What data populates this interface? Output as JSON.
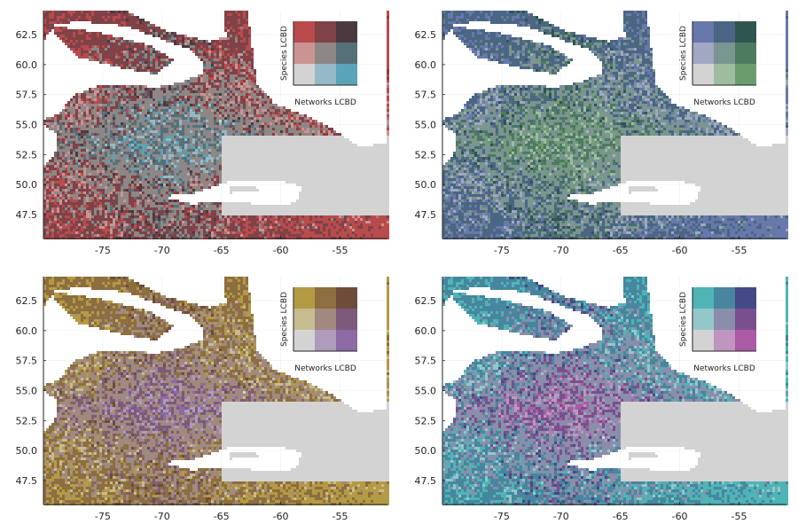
{
  "x_ticks": [
    "-75",
    "-70",
    "-65",
    "-60",
    "-55"
  ],
  "y_ticks": [
    "62.5",
    "60.0",
    "57.5",
    "55.0",
    "52.5",
    "50.0",
    "47.5"
  ],
  "legend": {
    "x_label": "Networks LCBD",
    "y_label": "Species LCBD"
  },
  "palettes": [
    {
      "name": "red-blue",
      "grid": [
        [
          "#d3d3d3",
          "#95bac6",
          "#5aa4b8"
        ],
        [
          "#c99593",
          "#8e8785",
          "#56707a"
        ],
        [
          "#b94b4d",
          "#7e4247",
          "#4a3a40"
        ]
      ],
      "nodata": "#ffffff"
    },
    {
      "name": "blue-green",
      "grid": [
        [
          "#d3d3d3",
          "#9ebd9e",
          "#6b9c6e"
        ],
        [
          "#a0a8c3",
          "#7b9590",
          "#4d7b5f"
        ],
        [
          "#6878aa",
          "#4a6682",
          "#2f5550"
        ]
      ],
      "nodata": "#ffffff"
    },
    {
      "name": "gold-purple",
      "grid": [
        [
          "#d3d3d3",
          "#b09bbb",
          "#8b6aa5"
        ],
        [
          "#c7bc90",
          "#a08a80",
          "#7c5a7a"
        ],
        [
          "#b59a45",
          "#8c6e40",
          "#6e4c3c"
        ]
      ],
      "nodata": "#ffffff"
    },
    {
      "name": "teal-magenta",
      "grid": [
        [
          "#d3d3d3",
          "#c195c1",
          "#ac5aa5"
        ],
        [
          "#94c7c9",
          "#8a8eaa",
          "#7a4f8e"
        ],
        [
          "#4fb4b6",
          "#47869e",
          "#434a85"
        ]
      ],
      "nodata": "#ffffff"
    }
  ],
  "chart_data": {
    "type": "heatmap",
    "description_kind": "bivariate choropleth map (Species LCBD × Networks LCBD)",
    "xlim": [
      -80,
      -51
    ],
    "ylim": [
      45.5,
      64.5
    ],
    "x_tick_values": [
      -75,
      -70,
      -65,
      -60,
      -55
    ],
    "y_tick_values": [
      62.5,
      60.0,
      57.5,
      55.0,
      52.5,
      50.0,
      47.5
    ],
    "classes_per_axis": 3,
    "panels": 4
  }
}
